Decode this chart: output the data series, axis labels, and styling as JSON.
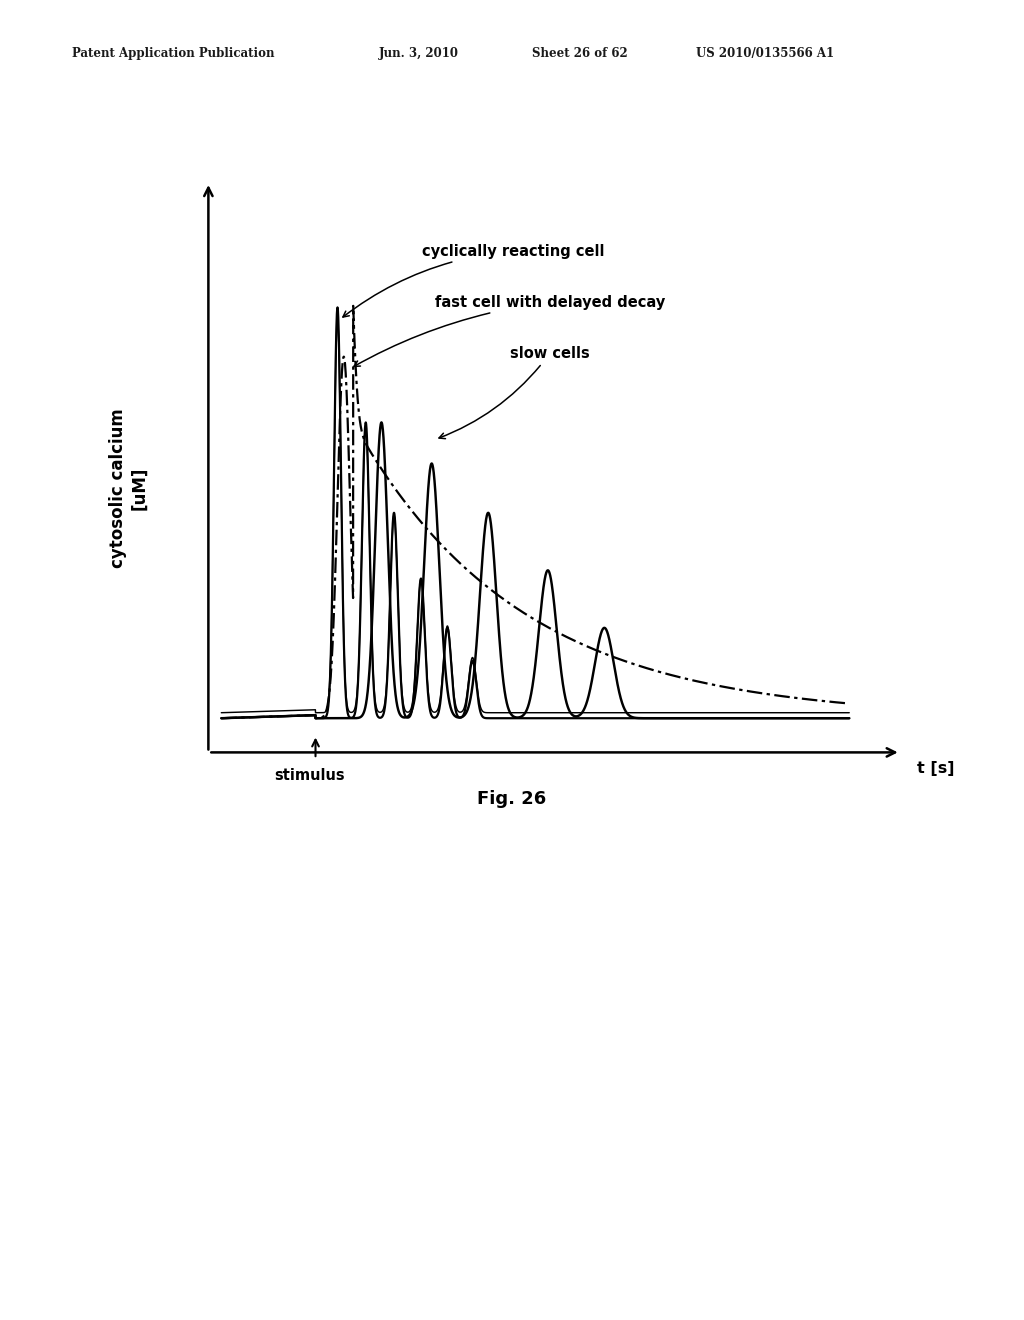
{
  "background_color": "#ffffff",
  "header_line1": "Patent Application Publication",
  "header_line2": "Jun. 3, 2010",
  "header_line3": "Sheet 26 of 62",
  "header_line4": "US 2010/0135566 A1",
  "ylabel": "cytosolic calcium\n[uM]",
  "xlabel": "t [s]",
  "figure_label": "Fig. 26",
  "stimulus_label": "stimulus",
  "label_cyclically": "cyclically reacting cell",
  "label_fast": "fast cell with delayed decay",
  "label_slow": "slow cells",
  "line_color": "#000000"
}
